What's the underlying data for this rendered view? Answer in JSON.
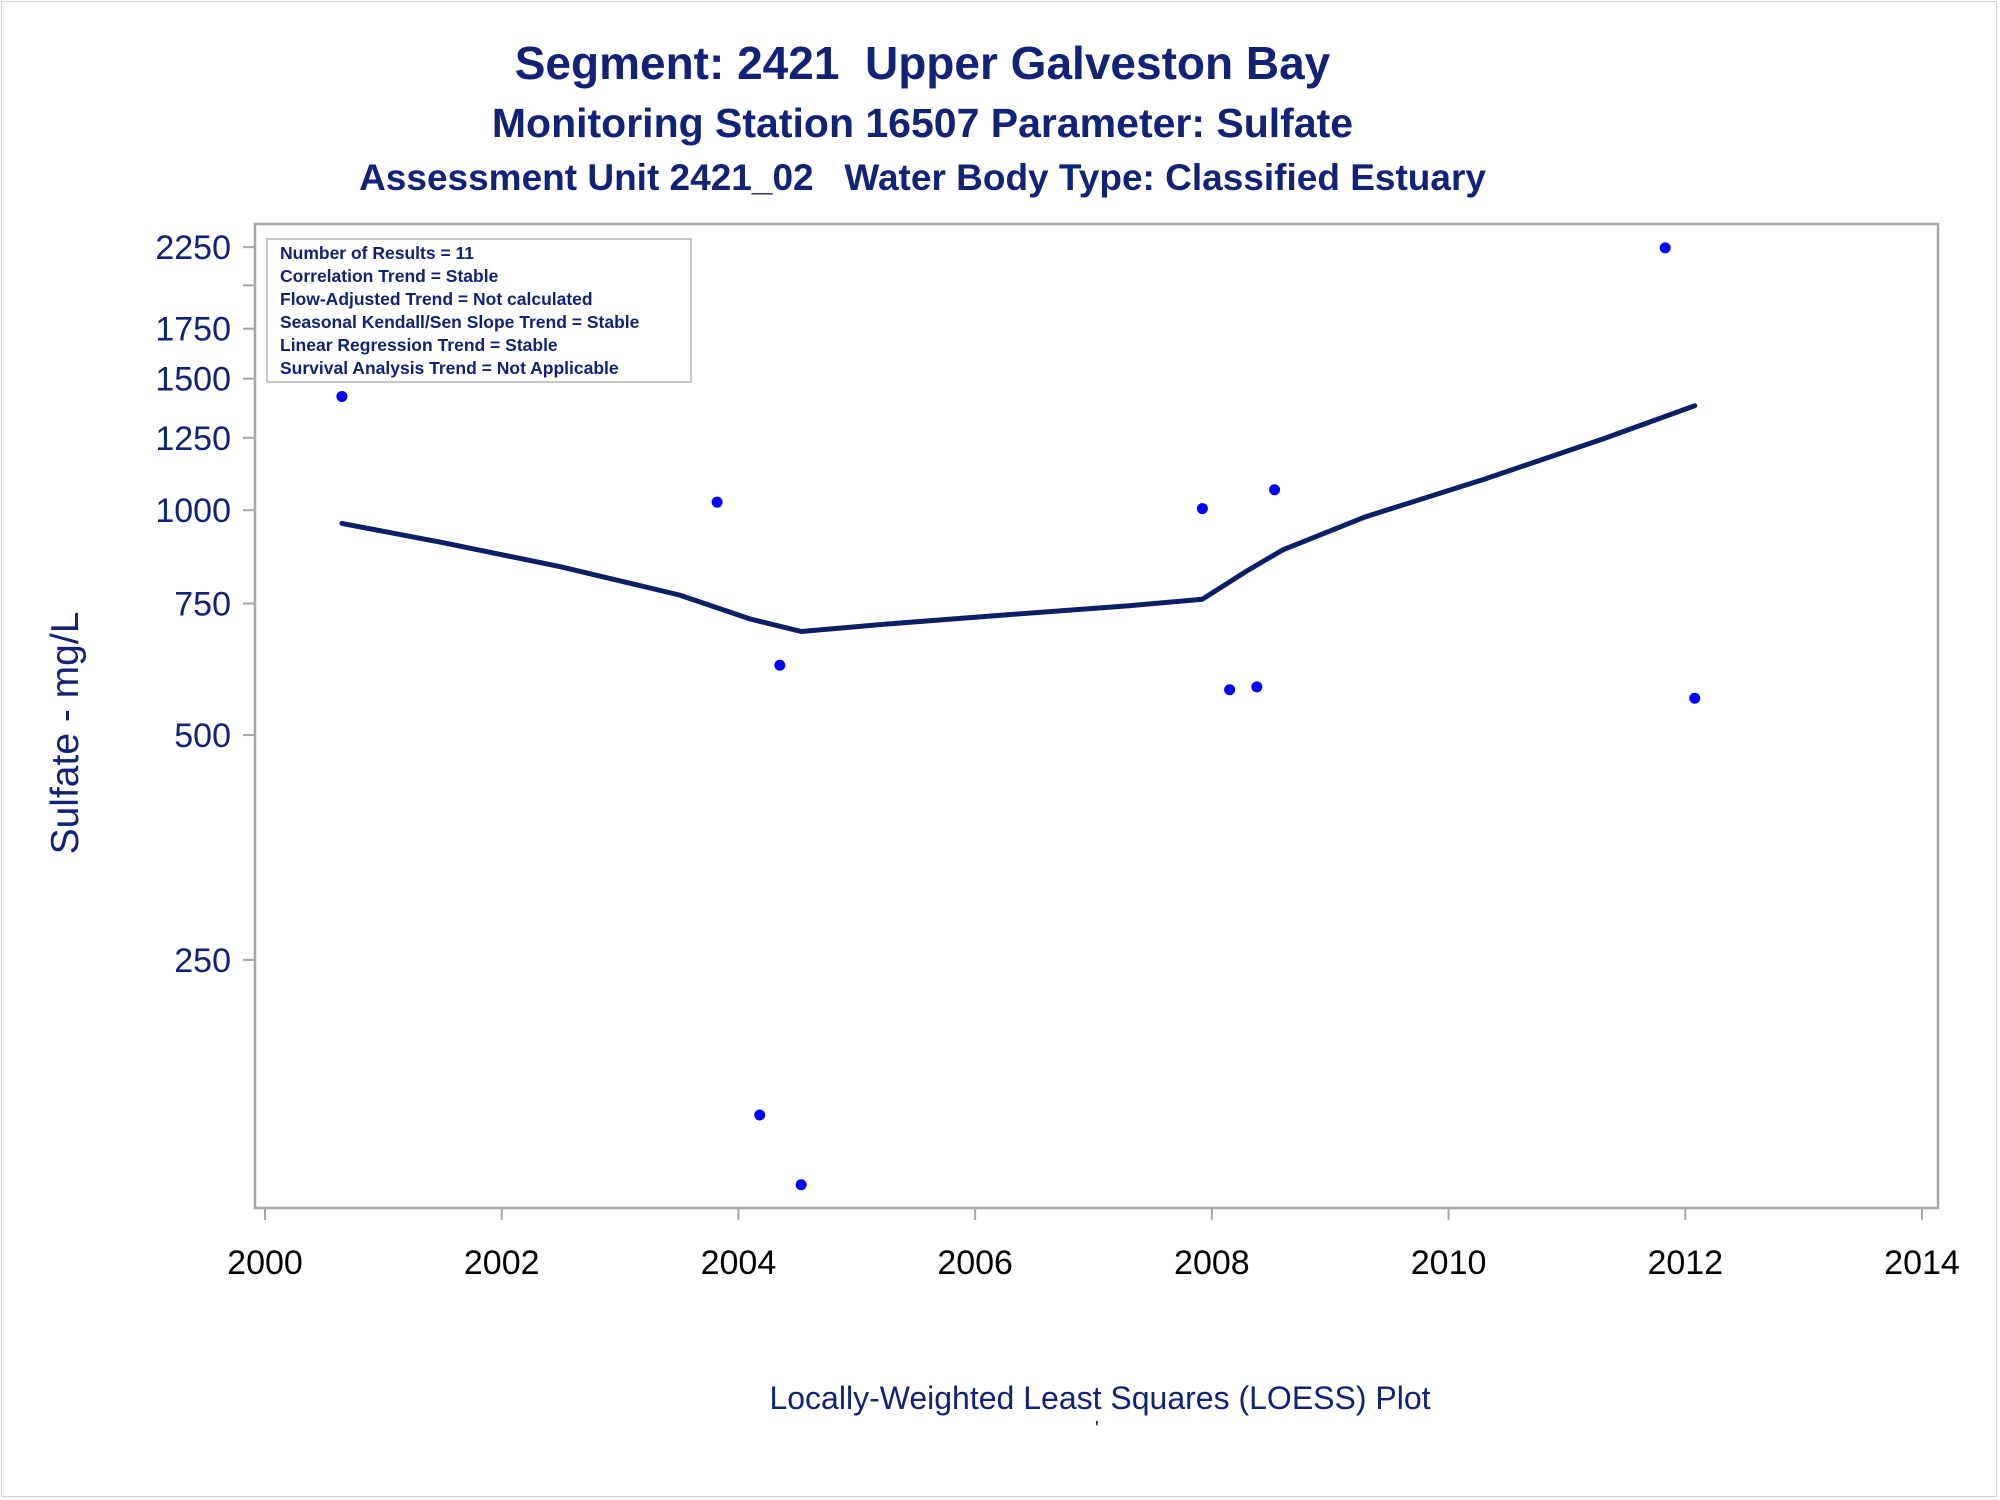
{
  "titles": {
    "line1": "Segment: 2421  Upper Galveston Bay",
    "line2": "Monitoring Station 16507 Parameter: Sulfate",
    "line3": "Assessment Unit 2421_02   Water Body Type: Classified Estuary"
  },
  "inset_lines": [
    "Number of Results = 11",
    "Correlation Trend = Stable",
    "Flow-Adjusted Trend = Not calculated",
    "Seasonal Kendall/Sen Slope Trend = Stable",
    "Linear Regression Trend = Stable",
    "Survival Analysis Trend = Not Applicable"
  ],
  "footnote": "Locally-Weighted Least Squares (LOESS) Plot",
  "footnote2": "'",
  "colors": {
    "text": "#112277",
    "points": "#0000ff",
    "line": "#0b1f66",
    "axis": "#a6a6a6"
  },
  "chart_data": {
    "type": "scatter",
    "ylabel": "Sulfate - mg/L",
    "xlabel": "",
    "y_scale": "log",
    "xlim": [
      2000,
      2014
    ],
    "ylim": [
      120,
      2300
    ],
    "x_ticks": [
      "2000",
      "2002",
      "2004",
      "2006",
      "2008",
      "2010",
      "2012",
      "2014"
    ],
    "y_ticks": [
      "2250",
      "1750",
      "1500",
      "1250",
      "1000",
      "750",
      "500",
      "250"
    ],
    "y_minor_ticks": [
      2000
    ],
    "series": [
      {
        "kind": "points",
        "points": [
          {
            "x": 2000.65,
            "y": 1420
          },
          {
            "x": 2003.82,
            "y": 1025
          },
          {
            "x": 2004.18,
            "y": 155
          },
          {
            "x": 2004.35,
            "y": 620
          },
          {
            "x": 2004.53,
            "y": 125
          },
          {
            "x": 2007.92,
            "y": 1005
          },
          {
            "x": 2008.15,
            "y": 575
          },
          {
            "x": 2008.38,
            "y": 580
          },
          {
            "x": 2008.53,
            "y": 1065
          },
          {
            "x": 2011.83,
            "y": 2245
          },
          {
            "x": 2012.08,
            "y": 560
          }
        ]
      },
      {
        "kind": "loess",
        "points": [
          {
            "x": 2000.65,
            "y": 960
          },
          {
            "x": 2001.5,
            "y": 905
          },
          {
            "x": 2002.5,
            "y": 840
          },
          {
            "x": 2003.5,
            "y": 770
          },
          {
            "x": 2004.1,
            "y": 715
          },
          {
            "x": 2004.53,
            "y": 688
          },
          {
            "x": 2005.3,
            "y": 705
          },
          {
            "x": 2006.3,
            "y": 725
          },
          {
            "x": 2007.3,
            "y": 745
          },
          {
            "x": 2007.92,
            "y": 760
          },
          {
            "x": 2008.3,
            "y": 830
          },
          {
            "x": 2008.6,
            "y": 885
          },
          {
            "x": 2009.3,
            "y": 980
          },
          {
            "x": 2010.3,
            "y": 1100
          },
          {
            "x": 2011.3,
            "y": 1245
          },
          {
            "x": 2012.08,
            "y": 1380
          }
        ]
      }
    ]
  }
}
